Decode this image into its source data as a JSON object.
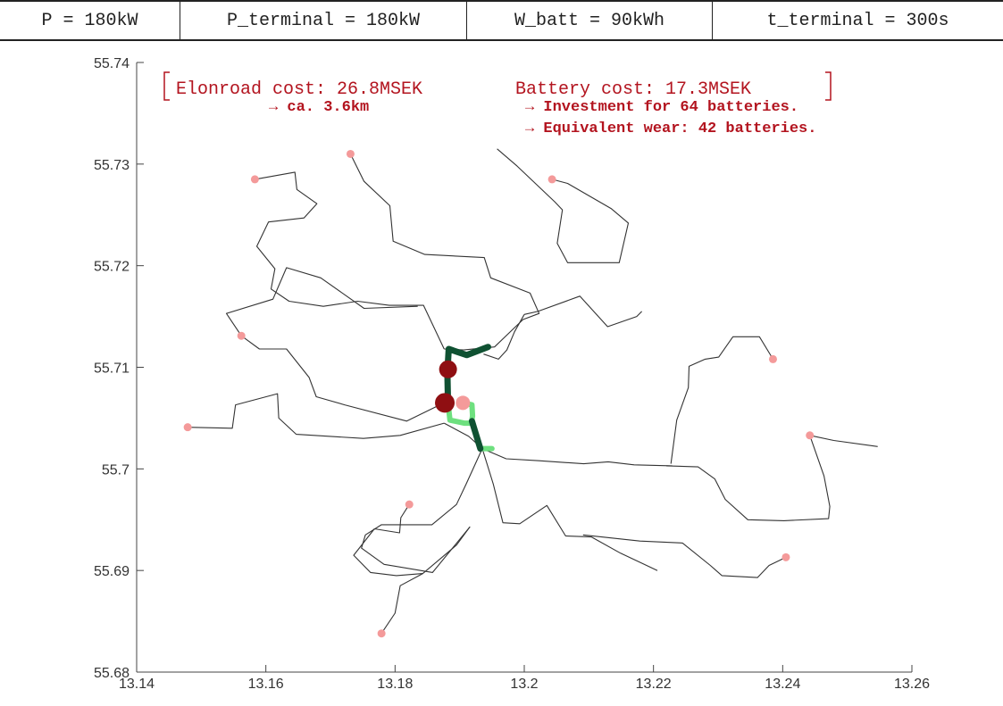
{
  "parameters": [
    "P = 180kW",
    "P_terminal = 180kW",
    "W_batt = 90kWh",
    "t_terminal = 300s"
  ],
  "annotations": {
    "elonroad_cost": "Elonroad cost: 26.8MSEK",
    "battery_cost": "Battery cost: 17.3MSEK",
    "elonroad_length": "→ ca. 3.6km",
    "investment": "→ Investment for 64 batteries.",
    "wear": "→ Equivalent wear: 42 batteries."
  },
  "colors": {
    "road": "#333333",
    "electrified_dark": "#0f5132",
    "electrified_light": "#6ee07f",
    "terminal": "#f49a9a",
    "station": "#8f0f12",
    "annotation": "#b3141f"
  },
  "chart_data": {
    "type": "line",
    "xlim": [
      13.14,
      13.26
    ],
    "ylim": [
      55.68,
      55.74
    ],
    "x_ticks": [
      13.14,
      13.16,
      13.18,
      13.2,
      13.22,
      13.24,
      13.26
    ],
    "x_tick_labels": [
      "13.14",
      "13.16",
      "13.18",
      "13.2",
      "13.22",
      "13.24",
      "13.26"
    ],
    "y_ticks": [
      55.68,
      55.69,
      55.7,
      55.71,
      55.72,
      55.73,
      55.74
    ],
    "y_tick_labels": [
      "55.68",
      "55.69",
      "55.7",
      "55.71",
      "55.72",
      "55.73",
      "55.74"
    ],
    "roads": [
      [
        [
          13.1583,
          55.7285
        ],
        [
          13.1645,
          55.7292
        ],
        [
          13.1648,
          55.7275
        ],
        [
          13.1679,
          55.7261
        ],
        [
          13.1659,
          55.7247
        ],
        [
          13.1604,
          55.7243
        ],
        [
          13.1586,
          55.7219
        ],
        [
          13.1614,
          55.7197
        ],
        [
          13.1608,
          55.7177
        ],
        [
          13.1636,
          55.7165
        ],
        [
          13.1689,
          55.716
        ],
        [
          13.1742,
          55.7165
        ],
        [
          13.1791,
          55.7161
        ],
        [
          13.1844,
          55.7161
        ],
        [
          13.1876,
          55.7118
        ]
      ],
      [
        [
          13.1731,
          55.731
        ],
        [
          13.1752,
          55.7283
        ],
        [
          13.1792,
          55.7259
        ],
        [
          13.1797,
          55.7224
        ],
        [
          13.1846,
          55.7211
        ],
        [
          13.1938,
          55.7208
        ],
        [
          13.1948,
          55.7188
        ],
        [
          13.2009,
          55.7173
        ],
        [
          13.2023,
          55.7153
        ],
        [
          13.1998,
          55.7147
        ],
        [
          13.1954,
          55.712
        ],
        [
          13.1906,
          55.7117
        ],
        [
          13.1876,
          55.7118
        ]
      ],
      [
        [
          13.2043,
          55.7285
        ],
        [
          13.2067,
          55.7281
        ],
        [
          13.2135,
          55.7256
        ],
        [
          13.2161,
          55.7242
        ],
        [
          13.2147,
          55.7203
        ],
        [
          13.2067,
          55.7203
        ],
        [
          13.2051,
          55.7222
        ],
        [
          13.2059,
          55.7255
        ],
        [
          13.2047,
          55.7263
        ],
        [
          13.1989,
          55.7298
        ],
        [
          13.1958,
          55.7315
        ]
      ],
      [
        [
          13.2,
          55.7152
        ],
        [
          13.2021,
          55.7155
        ],
        [
          13.2086,
          55.717
        ],
        [
          13.2129,
          55.714
        ],
        [
          13.2174,
          55.715
        ],
        [
          13.2182,
          55.7155
        ]
      ],
      [
        [
          13.2,
          55.7152
        ],
        [
          13.1985,
          55.7135
        ],
        [
          13.1973,
          55.7117
        ],
        [
          13.196,
          55.7108
        ],
        [
          13.1937,
          55.7113
        ]
      ],
      [
        [
          13.1562,
          55.7131
        ],
        [
          13.1539,
          55.7153
        ],
        [
          13.1611,
          55.7167
        ],
        [
          13.1632,
          55.7198
        ],
        [
          13.1685,
          55.7188
        ],
        [
          13.1752,
          55.7158
        ],
        [
          13.1835,
          55.716
        ]
      ],
      [
        [
          13.1562,
          55.7131
        ],
        [
          13.159,
          55.7118
        ],
        [
          13.1632,
          55.7118
        ],
        [
          13.1667,
          55.709
        ],
        [
          13.1678,
          55.7071
        ],
        [
          13.1722,
          55.7063
        ],
        [
          13.1818,
          55.7047
        ],
        [
          13.1876,
          55.7065
        ]
      ],
      [
        [
          13.1479,
          55.7041
        ],
        [
          13.1548,
          55.704
        ],
        [
          13.1553,
          55.7063
        ],
        [
          13.1618,
          55.7074
        ],
        [
          13.162,
          55.705
        ],
        [
          13.1647,
          55.7034
        ],
        [
          13.1751,
          55.703
        ],
        [
          13.1808,
          55.7033
        ],
        [
          13.1876,
          55.7045
        ]
      ],
      [
        [
          13.1876,
          55.7045
        ],
        [
          13.1914,
          55.7032
        ],
        [
          13.1935,
          55.702
        ]
      ],
      [
        [
          13.1935,
          55.702
        ],
        [
          13.1972,
          55.701
        ],
        [
          13.2023,
          55.7008
        ],
        [
          13.2092,
          55.7005
        ],
        [
          13.213,
          55.7007
        ],
        [
          13.217,
          55.7004
        ],
        [
          13.2229,
          55.7003
        ]
      ],
      [
        [
          13.1935,
          55.702
        ],
        [
          13.1952,
          55.6985
        ],
        [
          13.1967,
          55.6947
        ],
        [
          13.1993,
          55.6946
        ],
        [
          13.2035,
          55.6964
        ],
        [
          13.2064,
          55.6934
        ],
        [
          13.2104,
          55.6933
        ],
        [
          13.2149,
          55.6917
        ],
        [
          13.2206,
          55.69
        ]
      ],
      [
        [
          13.1935,
          55.702
        ],
        [
          13.191,
          55.6985
        ],
        [
          13.1895,
          55.6965
        ],
        [
          13.1857,
          55.6945
        ],
        [
          13.1804,
          55.6945
        ],
        [
          13.1779,
          55.6945
        ],
        [
          13.1754,
          55.6935
        ],
        [
          13.1748,
          55.6922
        ],
        [
          13.1783,
          55.6906
        ],
        [
          13.1858,
          55.6898
        ],
        [
          13.1916,
          55.6943
        ]
      ],
      [
        [
          13.1822,
          55.6965
        ],
        [
          13.1809,
          55.6952
        ],
        [
          13.1807,
          55.6937
        ],
        [
          13.1768,
          55.6941
        ],
        [
          13.1736,
          55.6915
        ],
        [
          13.1762,
          55.6898
        ],
        [
          13.1802,
          55.6895
        ],
        [
          13.1843,
          55.6897
        ]
      ],
      [
        [
          13.1779,
          55.6838
        ],
        [
          13.18,
          55.6858
        ],
        [
          13.1808,
          55.6885
        ],
        [
          13.1843,
          55.6897
        ],
        [
          13.1895,
          55.6925
        ],
        [
          13.1916,
          55.6943
        ]
      ],
      [
        [
          13.2405,
          55.6913
        ],
        [
          13.2379,
          55.6905
        ],
        [
          13.2361,
          55.6893
        ],
        [
          13.2306,
          55.6895
        ],
        [
          13.2288,
          55.6905
        ],
        [
          13.2245,
          55.6927
        ],
        [
          13.2179,
          55.6929
        ],
        [
          13.2091,
          55.6935
        ]
      ],
      [
        [
          13.2442,
          55.7033
        ],
        [
          13.2479,
          55.7028
        ],
        [
          13.2547,
          55.7022
        ]
      ],
      [
        [
          13.2442,
          55.7033
        ],
        [
          13.2464,
          55.6993
        ],
        [
          13.2473,
          55.6963
        ],
        [
          13.2471,
          55.6951
        ],
        [
          13.2402,
          55.6949
        ],
        [
          13.2346,
          55.695
        ],
        [
          13.2311,
          55.697
        ],
        [
          13.2295,
          55.699
        ],
        [
          13.2269,
          55.7002
        ],
        [
          13.222,
          55.7003
        ]
      ],
      [
        [
          13.2385,
          55.7108
        ],
        [
          13.2364,
          55.713
        ],
        [
          13.2323,
          55.713
        ],
        [
          13.2301,
          55.711
        ],
        [
          13.228,
          55.7108
        ],
        [
          13.2255,
          55.7101
        ],
        [
          13.2254,
          55.708
        ],
        [
          13.2236,
          55.7048
        ],
        [
          13.2227,
          55.7005
        ]
      ]
    ],
    "electrified_dark": [
      [
        [
          13.1944,
          55.712
        ],
        [
          13.1911,
          55.7112
        ],
        [
          13.1883,
          55.7118
        ],
        [
          13.1881,
          55.7095
        ],
        [
          13.1882,
          55.7065
        ]
      ],
      [
        [
          13.1919,
          55.7047
        ],
        [
          13.1932,
          55.702
        ]
      ]
    ],
    "electrified_light": [
      [
        [
          13.1882,
          55.7065
        ],
        [
          13.1885,
          55.7048
        ],
        [
          13.1907,
          55.7045
        ],
        [
          13.1918,
          55.7045
        ],
        [
          13.192,
          55.7052
        ],
        [
          13.1919,
          55.7063
        ],
        [
          13.1905,
          55.7065
        ]
      ],
      [
        [
          13.1932,
          55.702
        ],
        [
          13.195,
          55.702
        ]
      ]
    ],
    "terminals": [
      [
        13.1583,
        55.7285
      ],
      [
        13.1731,
        55.731
      ],
      [
        13.2043,
        55.7285
      ],
      [
        13.1562,
        55.7131
      ],
      [
        13.2385,
        55.7108
      ],
      [
        13.1479,
        55.7041
      ],
      [
        13.1822,
        55.6965
      ],
      [
        13.2442,
        55.7033
      ],
      [
        13.2405,
        55.6913
      ],
      [
        13.1779,
        55.6838
      ],
      [
        13.1905,
        55.7065
      ]
    ],
    "stations": [
      {
        "x": 13.1882,
        "y": 55.7098,
        "r": 10
      },
      {
        "x": 13.1877,
        "y": 55.7065,
        "r": 11
      }
    ]
  }
}
